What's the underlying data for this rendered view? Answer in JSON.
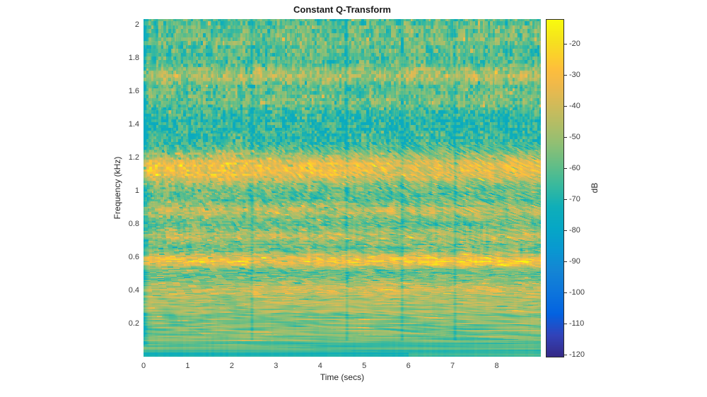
{
  "chart_data": {
    "type": "heatmap",
    "subtype": "constant-q-transform-spectrogram",
    "title": "Constant Q-Transform",
    "xlabel": "Time (secs)",
    "ylabel": "Frequency (kHz)",
    "x_range_secs": [
      0,
      9
    ],
    "x_ticks": [
      0,
      1,
      2,
      3,
      4,
      5,
      6,
      7,
      8
    ],
    "x_tick_labels": [
      "0",
      "1",
      "2",
      "3",
      "4",
      "5",
      "6",
      "7",
      "8"
    ],
    "y_range_khz": [
      0,
      2.033
    ],
    "y_ticks": [
      0.2,
      0.4,
      0.6,
      0.8,
      1.0,
      1.2,
      1.4,
      1.6,
      1.8,
      2.0
    ],
    "y_tick_labels": [
      "0.2",
      "0.4",
      "0.6",
      "0.8",
      "1",
      "1.2",
      "1.4",
      "1.6",
      "1.8",
      "2"
    ],
    "grid": false,
    "legend_position": "none",
    "colorbar": {
      "label": "dB",
      "min_db": -120.4,
      "max_db": -12.2,
      "ticks": [
        -20,
        -30,
        -40,
        -50,
        -60,
        -70,
        -80,
        -90,
        -100,
        -110,
        -120
      ],
      "tick_labels": [
        "-20",
        "-30",
        "-40",
        "-50",
        "-60",
        "-70",
        "-80",
        "-90",
        "-100",
        "-110",
        "-120"
      ]
    },
    "colormap": {
      "name": "parula",
      "stops": [
        {
          "pos": 0.0,
          "color": "#352a87"
        },
        {
          "pos": 0.063,
          "color": "#3243ba"
        },
        {
          "pos": 0.127,
          "color": "#0363e1"
        },
        {
          "pos": 0.19,
          "color": "#0d75dc"
        },
        {
          "pos": 0.254,
          "color": "#1485d4"
        },
        {
          "pos": 0.317,
          "color": "#0998d1"
        },
        {
          "pos": 0.381,
          "color": "#06a7c6"
        },
        {
          "pos": 0.444,
          "color": "#0faeb9"
        },
        {
          "pos": 0.508,
          "color": "#38b99e"
        },
        {
          "pos": 0.571,
          "color": "#65be86"
        },
        {
          "pos": 0.635,
          "color": "#92bf73"
        },
        {
          "pos": 0.698,
          "color": "#b7bd64"
        },
        {
          "pos": 0.762,
          "color": "#d9ba56"
        },
        {
          "pos": 0.81,
          "color": "#f1b94a"
        },
        {
          "pos": 0.852,
          "color": "#fdbe3d"
        },
        {
          "pos": 0.889,
          "color": "#fcce2e"
        },
        {
          "pos": 0.944,
          "color": "#f5e41d"
        },
        {
          "pos": 1.0,
          "color": "#f9fb0e"
        }
      ]
    },
    "background_level_db": -63,
    "low_freq_floor": {
      "below_khz": 0.06,
      "level_db": -68
    },
    "frequency_bands": [
      {
        "center_khz": 0.1,
        "sigma_khz": 0.045,
        "gain_db": 5,
        "segment_gain": [
          1,
          1,
          1,
          1,
          1
        ]
      },
      {
        "center_khz": 0.18,
        "sigma_khz": 0.04,
        "gain_db": 6,
        "segment_gain": [
          1,
          1,
          1,
          1.05,
          1
        ]
      },
      {
        "center_khz": 0.3,
        "sigma_khz": 0.05,
        "gain_db": 14,
        "segment_gain": [
          0.95,
          1,
          1.05,
          1.05,
          1.05
        ]
      },
      {
        "center_khz": 0.41,
        "sigma_khz": 0.045,
        "gain_db": 19,
        "segment_gain": [
          0.9,
          1.05,
          1.1,
          1.05,
          1.05
        ]
      },
      {
        "center_khz": 0.58,
        "sigma_khz": 0.035,
        "gain_db": 31,
        "segment_gain": [
          1.0,
          0.95,
          1.05,
          1.1,
          1.12
        ]
      },
      {
        "center_khz": 0.73,
        "sigma_khz": 0.04,
        "gain_db": 17,
        "segment_gain": [
          1,
          1.05,
          0.95,
          1,
          1
        ]
      },
      {
        "center_khz": 0.88,
        "sigma_khz": 0.035,
        "gain_db": 18,
        "segment_gain": [
          1.05,
          1,
          1,
          0.95,
          1
        ]
      },
      {
        "center_khz": 1.13,
        "sigma_khz": 0.07,
        "gain_db": 29,
        "segment_gain": [
          1.1,
          1.05,
          0.95,
          0.92,
          0.97
        ]
      },
      {
        "center_khz": 1.37,
        "sigma_khz": 0.08,
        "gain_db": -5,
        "segment_gain": [
          1,
          1,
          1,
          1,
          1
        ]
      },
      {
        "center_khz": 1.55,
        "sigma_khz": 0.05,
        "gain_db": 9,
        "segment_gain": [
          0.9,
          1,
          1.05,
          1.1,
          1.05
        ]
      },
      {
        "center_khz": 1.7,
        "sigma_khz": 0.04,
        "gain_db": 16,
        "segment_gain": [
          0.95,
          1.1,
          1,
          1,
          1.05
        ]
      },
      {
        "center_khz": 1.92,
        "sigma_khz": 0.06,
        "gain_db": 6,
        "segment_gain": [
          1,
          1,
          1,
          1,
          1
        ]
      }
    ],
    "segments_secs": [
      0,
      2.45,
      4.6,
      5.85,
      7.05,
      9.0
    ],
    "segment_boundary_gap": {
      "half_width_secs": 0.055,
      "drop_db": 10
    },
    "onset": {
      "duration_secs": 0.12,
      "drop_db": 16
    },
    "noise": {
      "smooth_below_khz": 0.05,
      "low_amp_db": 3,
      "mid_amp_db": 6.5,
      "high_amp_db": 9.5,
      "stripe_amp_low_db": 5,
      "stripe_amp_high_db": 2.5,
      "column_amp_db": 3.5,
      "bright_speckle_prob": 0.07,
      "bright_speckle_max_db": 14,
      "dark_speckle_prob": 0.045,
      "dark_speckle_max_db": 14
    },
    "level_clamp_db": [
      -76,
      -13
    ],
    "bins_per_octave_visual": 56,
    "render_seed": 7
  }
}
